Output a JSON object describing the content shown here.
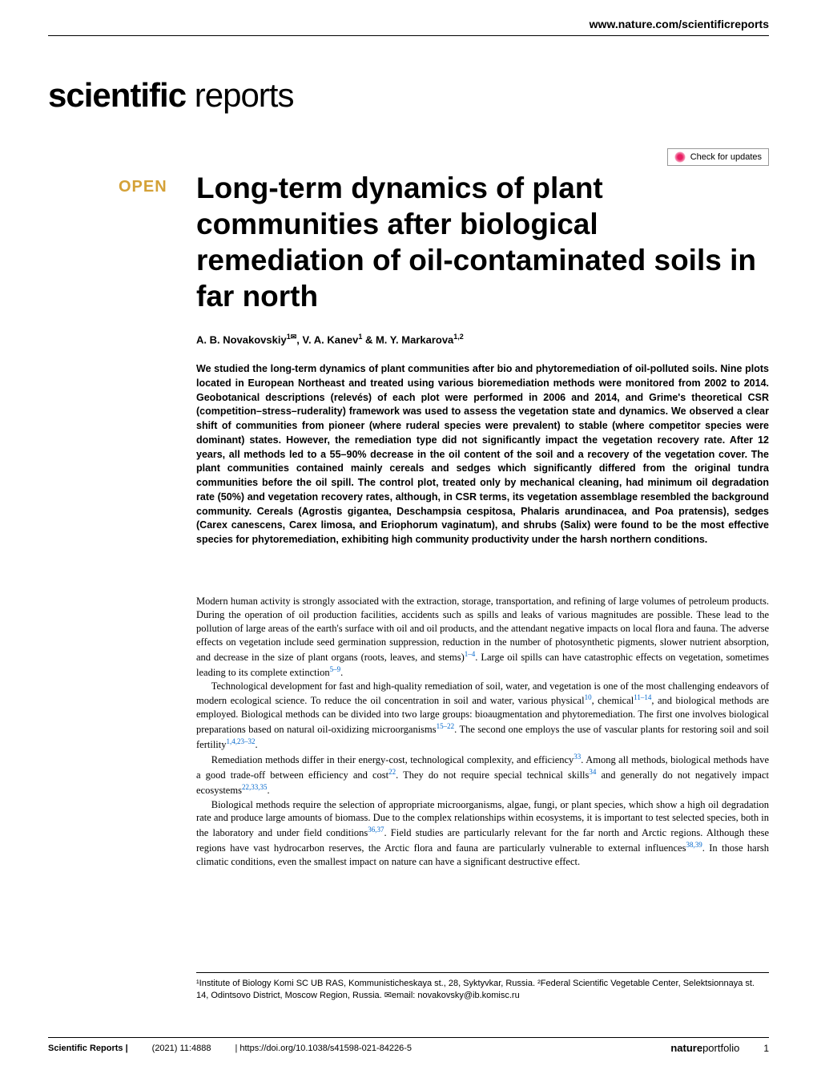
{
  "header": {
    "url": "www.nature.com/scientificreports",
    "journal_bold": "scientific",
    "journal_light": " reports",
    "check_updates_label": "Check for updates"
  },
  "article": {
    "open_badge": "OPEN",
    "title": "Long-term dynamics of plant communities after biological remediation of oil-contaminated soils in far north",
    "authors_html": "A. B. Novakovskiy<sup>1✉</sup>, V. A. Kanev<sup>1</sup> & M. Y. Markarova<sup>1,2</sup>"
  },
  "abstract": "We studied the long-term dynamics of plant communities after bio and phytoremediation of oil-polluted soils. Nine plots located in European Northeast and treated using various bioremediation methods were monitored from 2002 to 2014. Geobotanical descriptions (relevés) of each plot were performed in 2006 and 2014, and Grime's theoretical CSR (competition–stress–ruderality) framework was used to assess the vegetation state and dynamics. We observed a clear shift of communities from pioneer (where ruderal species were prevalent) to stable (where competitor species were dominant) states. However, the remediation type did not significantly impact the vegetation recovery rate. After 12 years, all methods led to a 55–90% decrease in the oil content of the soil and a recovery of the vegetation cover. The plant communities contained mainly cereals and sedges which significantly differed from the original tundra communities before the oil spill. The control plot, treated only by mechanical cleaning, had minimum oil degradation rate (50%) and vegetation recovery rates, although, in CSR terms, its vegetation assemblage resembled the background community. Cereals (Agrostis gigantea, Deschampsia cespitosa, Phalaris arundinacea, and Poa pratensis), sedges (Carex canescens, Carex limosa, and Eriophorum vaginatum), and shrubs (Salix) were found to be the most effective species for phytoremediation, exhibiting high community productivity under the harsh northern conditions.",
  "body": {
    "p1": "Modern human activity is strongly associated with the extraction, storage, transportation, and refining of large volumes of petroleum products. During the operation of oil production facilities, accidents such as spills and leaks of various magnitudes are possible. These lead to the pollution of large areas of the earth's surface with oil and oil products, and the attendant negative impacts on local flora and fauna. The adverse effects on vegetation include seed germination suppression, reduction in the number of photosynthetic pigments, slower nutrient absorption, and decrease in the size of plant organs (roots, leaves, and stems)",
    "p1_refs1": "1–4",
    "p1_cont": ". Large oil spills can have catastrophic effects on vegetation, sometimes leading to its complete extinction",
    "p1_refs2": "5–9",
    "p1_end": ".",
    "p2": "Technological development for fast and high-quality remediation of soil, water, and vegetation is one of the most challenging endeavors of modern ecological science. To reduce the oil concentration in soil and water, various physical",
    "p2_refs1": "10",
    "p2_cont1": ", chemical",
    "p2_refs2": "11–14",
    "p2_cont2": ", and biological methods are employed. Biological methods can be divided into two large groups: bioaugmentation and phytoremediation. The first one involves biological preparations based on natural oil-oxidizing microorganisms",
    "p2_refs3": "15–22",
    "p2_cont3": ". The second one employs the use of vascular plants for restoring soil and soil fertility",
    "p2_refs4": "1,4,23–32",
    "p2_end": ".",
    "p3": "Remediation methods differ in their energy-cost, technological complexity, and efficiency",
    "p3_refs1": "33",
    "p3_cont1": ". Among all methods, biological methods have a good trade-off between efficiency and cost",
    "p3_refs2": "22",
    "p3_cont2": ". They do not require special technical skills",
    "p3_refs3": "34",
    "p3_cont3": " and generally do not negatively impact ecosystems",
    "p3_refs4": "22,33,35",
    "p3_end": ".",
    "p4": "Biological methods require the selection of appropriate microorganisms, algae, fungi, or plant species, which show a high oil degradation rate and produce large amounts of biomass. Due to the complex relationships within ecosystems, it is important to test selected species, both in the laboratory and under field conditions",
    "p4_refs1": "36,37",
    "p4_cont1": ". Field studies are particularly relevant for the far north and Arctic regions. Although these regions have vast hydrocarbon reserves, the Arctic flora and fauna are particularly vulnerable to external influences",
    "p4_refs2": "38,39",
    "p4_cont2": ". In those harsh climatic conditions, even the smallest impact on nature can have a significant destructive effect."
  },
  "affiliations": "¹Institute of Biology Komi SC UB RAS, Kommunisticheskaya st., 28, Syktyvkar, Russia. ²Federal Scientific Vegetable Center, Selektsionnaya st. 14, Odintsovo District, Moscow Region, Russia. ✉email: novakovsky@ib.komisc.ru",
  "footer": {
    "journal": "Scientific Reports |",
    "citation": "(2021) 11:4888",
    "doi": "| https://doi.org/10.1038/s41598-021-84226-5",
    "publisher_bold": "nature",
    "publisher_light": "portfolio",
    "page": "1"
  },
  "colors": {
    "text": "#000000",
    "link": "#0066cc",
    "open_badge": "#d4a137",
    "background": "#ffffff",
    "rule": "#000000"
  }
}
